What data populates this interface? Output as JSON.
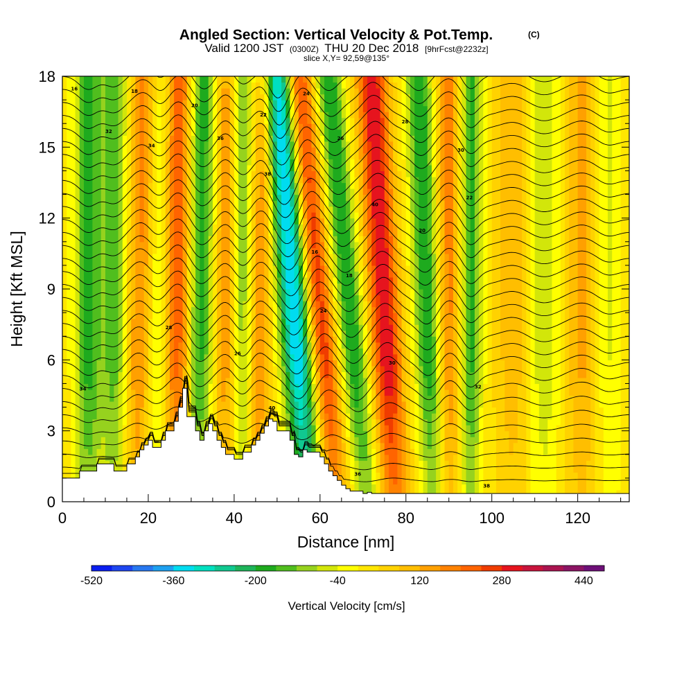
{
  "chart_data": {
    "type": "heatmap",
    "title": "Angled Section: Vertical Velocity & Pot.Temp.",
    "title_suffix": "(C)",
    "subtitle": {
      "valid": "Valid 1200 JST",
      "utc": "(0300Z)",
      "date": "THU 20 Dec 2018",
      "forecast": "[9hrFcst@2232z]"
    },
    "slice_label": "slice X,Y= 92,59@135°",
    "xlabel": "Distance [nm]",
    "ylabel": "Height [Kft MSL]",
    "xlim": [
      0,
      132
    ],
    "ylim": [
      0,
      18
    ],
    "x_ticks": [
      0,
      20,
      40,
      60,
      80,
      100,
      120
    ],
    "y_ticks": [
      0,
      3,
      6,
      9,
      12,
      15,
      18
    ],
    "colorbar": {
      "label": "Vertical Velocity [cm/s]",
      "range": [
        -520,
        480
      ],
      "step": 40,
      "tick_labels": [
        "-520",
        "-360",
        "-200",
        "-40",
        "120",
        "280",
        "440"
      ],
      "colors": [
        "#0a1ef0",
        "#1e46f0",
        "#2878f0",
        "#1ea0f0",
        "#00dcf0",
        "#00e0c0",
        "#10c890",
        "#1eb45a",
        "#1eaa1e",
        "#50be1e",
        "#96d21e",
        "#d2e60a",
        "#ffff00",
        "#ffe600",
        "#ffd200",
        "#ffbe00",
        "#ffa000",
        "#ff8200",
        "#ff6400",
        "#f03c00",
        "#e6141e",
        "#c8143c",
        "#aa1450",
        "#8c1464",
        "#6e0f78"
      ]
    },
    "velocity_features": [
      {
        "x": 6,
        "amp": -200,
        "width": 3,
        "tilt": 0.0
      },
      {
        "x": 12,
        "amp": -160,
        "width": 3,
        "tilt": 0.0
      },
      {
        "x": 18,
        "amp": 150,
        "width": 3,
        "tilt": 0.1
      },
      {
        "x": 22,
        "amp": -80,
        "width": 2.5,
        "tilt": 0.1
      },
      {
        "x": 27,
        "amp": 210,
        "width": 3,
        "tilt": 0.0
      },
      {
        "x": 32,
        "amp": -200,
        "width": 3,
        "tilt": 0.1
      },
      {
        "x": 38,
        "amp": 130,
        "width": 2.5,
        "tilt": 0.0
      },
      {
        "x": 42,
        "amp": -130,
        "width": 2.5,
        "tilt": 0.0
      },
      {
        "x": 46,
        "amp": 150,
        "width": 2.5,
        "tilt": 0.1
      },
      {
        "x": 54,
        "amp": -380,
        "width": 3.5,
        "tilt": -0.4
      },
      {
        "x": 60,
        "amp": 250,
        "width": 3,
        "tilt": -0.5
      },
      {
        "x": 67,
        "amp": -220,
        "width": 3,
        "tilt": -0.5
      },
      {
        "x": 75,
        "amp": 300,
        "width": 3.5,
        "tilt": -0.3
      },
      {
        "x": 85,
        "amp": -220,
        "width": 3,
        "tilt": -0.2
      },
      {
        "x": 90,
        "amp": 160,
        "width": 3,
        "tilt": 0.0
      },
      {
        "x": 95,
        "amp": -200,
        "width": 2.5,
        "tilt": 0.0
      },
      {
        "x": 105,
        "amp": 90,
        "width": 4,
        "tilt": 0.0
      },
      {
        "x": 112,
        "amp": -90,
        "width": 4,
        "tilt": 0.0
      },
      {
        "x": 121,
        "amp": 110,
        "width": 4,
        "tilt": 0.0
      },
      {
        "x": 127,
        "amp": -70,
        "width": 3,
        "tilt": 0.0
      }
    ],
    "terrain": {
      "x": [
        0,
        4,
        4,
        8,
        8,
        12,
        12,
        15,
        15,
        17,
        17,
        18,
        18,
        19,
        19,
        20,
        20,
        21,
        21,
        23,
        23,
        24,
        24,
        26,
        26,
        27,
        27,
        28,
        28,
        29,
        29,
        31,
        31,
        32,
        32,
        33,
        33,
        34,
        34,
        35,
        35,
        36,
        36,
        37,
        37,
        38,
        38,
        40,
        40,
        42,
        42,
        44,
        44,
        45,
        45,
        46,
        46,
        47,
        47,
        48,
        48,
        49,
        49,
        50,
        50,
        53,
        53,
        54,
        54,
        55,
        55,
        56,
        56,
        57,
        57,
        60,
        60,
        61,
        61,
        62,
        62,
        63,
        63,
        64,
        64,
        65,
        65,
        66,
        66,
        67,
        67,
        70,
        70,
        71,
        71,
        72,
        72,
        120,
        120,
        132
      ],
      "y": [
        1.0,
        1.0,
        1.3,
        1.3,
        1.6,
        1.6,
        1.3,
        1.3,
        1.6,
        1.6,
        1.9,
        1.9,
        2.2,
        2.2,
        2.4,
        2.4,
        2.6,
        2.6,
        2.3,
        2.3,
        2.6,
        2.6,
        3.0,
        3.0,
        3.4,
        3.4,
        4.0,
        4.0,
        4.8,
        4.8,
        3.6,
        3.6,
        3.0,
        3.0,
        2.6,
        2.6,
        3.0,
        3.0,
        3.3,
        3.3,
        3.0,
        3.0,
        2.6,
        2.6,
        2.3,
        2.3,
        2.0,
        2.0,
        1.8,
        1.8,
        2.1,
        2.1,
        2.4,
        2.4,
        2.6,
        2.6,
        2.9,
        2.9,
        3.2,
        3.2,
        3.5,
        3.5,
        3.4,
        3.4,
        3.0,
        3.0,
        2.6,
        2.6,
        2.0,
        2.0,
        1.9,
        1.9,
        2.2,
        2.2,
        2.1,
        2.1,
        1.9,
        1.9,
        1.6,
        1.6,
        1.3,
        1.3,
        1.1,
        1.1,
        0.9,
        0.9,
        0.7,
        0.7,
        0.55,
        0.55,
        0.45,
        0.45,
        0.35,
        0.35,
        0.4,
        0.4,
        0.35,
        0.35,
        0.35,
        0.35
      ]
    },
    "contour_annotations": [
      "16",
      "18",
      "20",
      "22",
      "24",
      "26",
      "28",
      "30",
      "32",
      "34",
      "36",
      "38",
      "40"
    ]
  }
}
